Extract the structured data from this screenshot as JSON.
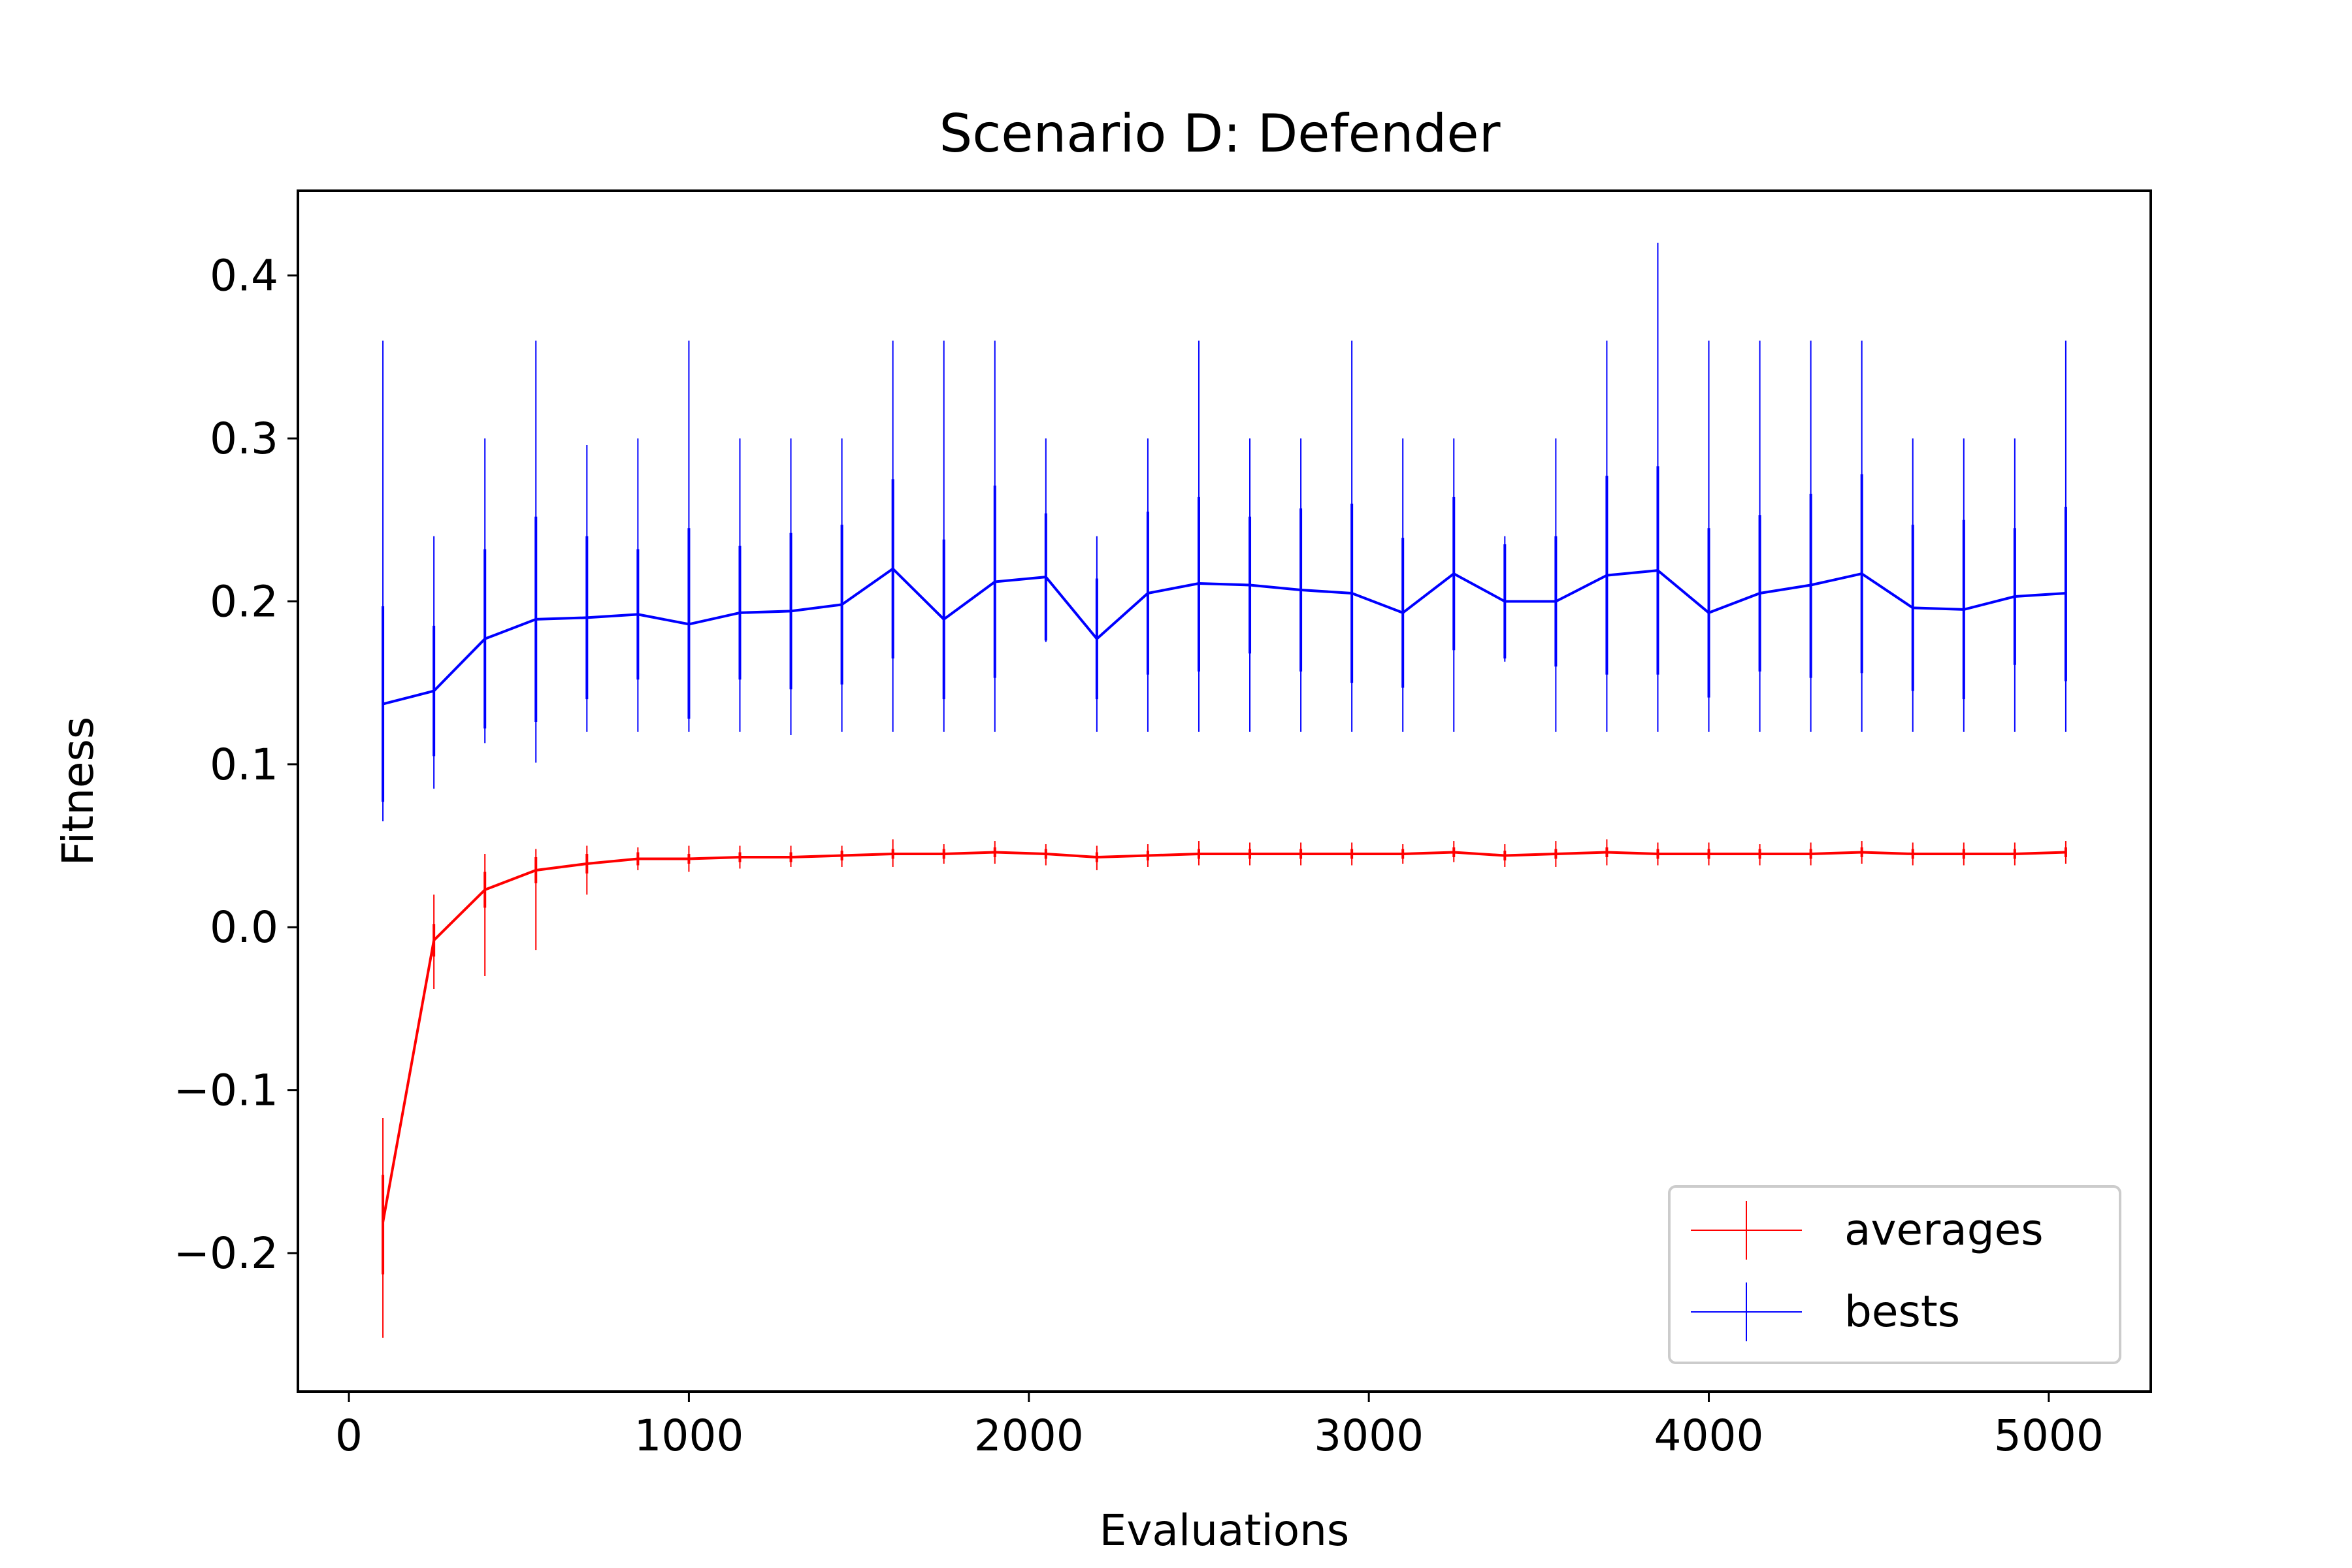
{
  "chart_data": {
    "type": "line",
    "title": "Scenario D: Defender",
    "xlabel": "Evaluations",
    "ylabel": "Fitness",
    "xlim": [
      -150,
      5300
    ],
    "ylim": [
      -0.285,
      0.452
    ],
    "xticks": [
      0,
      1000,
      2000,
      3000,
      4000,
      5000
    ],
    "xtick_labels": [
      "0",
      "1000",
      "2000",
      "3000",
      "4000",
      "5000"
    ],
    "yticks": [
      -0.2,
      -0.1,
      0.0,
      0.1,
      0.2,
      0.3,
      0.4
    ],
    "ytick_labels": [
      "−0.2",
      "−0.1",
      "0.0",
      "0.1",
      "0.2",
      "0.3",
      "0.4"
    ],
    "grid": false,
    "legend_position": "lower-right",
    "error_bars": true,
    "series": [
      {
        "name": "averages",
        "color": "#ff0000",
        "x": [
          100,
          250,
          400,
          550,
          700,
          850,
          1000,
          1150,
          1300,
          1450,
          1600,
          1750,
          1900,
          2050,
          2200,
          2350,
          2500,
          2650,
          2800,
          2950,
          3100,
          3250,
          3400,
          3550,
          3700,
          3850,
          4000,
          4150,
          4300,
          4450,
          4600,
          4750,
          4900,
          5050
        ],
        "y": [
          -0.181,
          -0.008,
          0.023,
          0.035,
          0.039,
          0.042,
          0.042,
          0.043,
          0.043,
          0.044,
          0.045,
          0.045,
          0.046,
          0.045,
          0.043,
          0.044,
          0.045,
          0.045,
          0.045,
          0.045,
          0.045,
          0.046,
          0.044,
          0.045,
          0.046,
          0.045,
          0.045,
          0.045,
          0.045,
          0.046,
          0.045,
          0.045,
          0.045,
          0.046
        ],
        "err_outer_low": [
          -0.252,
          -0.038,
          -0.03,
          -0.014,
          0.02,
          0.035,
          0.034,
          0.036,
          0.037,
          0.037,
          0.037,
          0.039,
          0.039,
          0.038,
          0.035,
          0.037,
          0.038,
          0.038,
          0.038,
          0.038,
          0.039,
          0.04,
          0.037,
          0.037,
          0.038,
          0.038,
          0.038,
          0.038,
          0.038,
          0.039,
          0.038,
          0.038,
          0.038,
          0.039
        ],
        "err_outer_high": [
          -0.117,
          0.02,
          0.045,
          0.048,
          0.05,
          0.049,
          0.05,
          0.05,
          0.05,
          0.05,
          0.054,
          0.051,
          0.053,
          0.051,
          0.05,
          0.051,
          0.053,
          0.052,
          0.052,
          0.052,
          0.051,
          0.053,
          0.051,
          0.053,
          0.054,
          0.052,
          0.052,
          0.051,
          0.052,
          0.053,
          0.052,
          0.052,
          0.052,
          0.053
        ],
        "err_inner_low": [
          -0.213,
          -0.018,
          0.012,
          0.027,
          0.033,
          0.038,
          0.039,
          0.04,
          0.04,
          0.041,
          0.042,
          0.042,
          0.043,
          0.042,
          0.04,
          0.041,
          0.042,
          0.042,
          0.042,
          0.042,
          0.042,
          0.043,
          0.041,
          0.042,
          0.043,
          0.042,
          0.042,
          0.042,
          0.042,
          0.043,
          0.042,
          0.042,
          0.042,
          0.043
        ],
        "err_inner_high": [
          -0.152,
          0.002,
          0.034,
          0.043,
          0.045,
          0.046,
          0.045,
          0.046,
          0.046,
          0.047,
          0.048,
          0.048,
          0.049,
          0.048,
          0.046,
          0.047,
          0.048,
          0.048,
          0.048,
          0.048,
          0.048,
          0.049,
          0.047,
          0.048,
          0.049,
          0.048,
          0.048,
          0.048,
          0.048,
          0.049,
          0.048,
          0.048,
          0.048,
          0.049
        ]
      },
      {
        "name": "bests",
        "color": "#0000ff",
        "x": [
          100,
          250,
          400,
          550,
          700,
          850,
          1000,
          1150,
          1300,
          1450,
          1600,
          1750,
          1900,
          2050,
          2200,
          2350,
          2500,
          2650,
          2800,
          2950,
          3100,
          3250,
          3400,
          3550,
          3700,
          3850,
          4000,
          4150,
          4300,
          4450,
          4600,
          4750,
          4900,
          5050
        ],
        "y": [
          0.137,
          0.145,
          0.177,
          0.189,
          0.19,
          0.192,
          0.186,
          0.193,
          0.194,
          0.198,
          0.22,
          0.189,
          0.212,
          0.215,
          0.177,
          0.205,
          0.211,
          0.21,
          0.207,
          0.205,
          0.193,
          0.217,
          0.2,
          0.2,
          0.216,
          0.219,
          0.193,
          0.205,
          0.21,
          0.217,
          0.196,
          0.195,
          0.203,
          0.205
        ],
        "err_outer_low": [
          0.065,
          0.085,
          0.113,
          0.101,
          0.12,
          0.12,
          0.12,
          0.12,
          0.118,
          0.12,
          0.12,
          0.12,
          0.12,
          0.175,
          0.12,
          0.12,
          0.12,
          0.12,
          0.12,
          0.12,
          0.12,
          0.12,
          0.163,
          0.12,
          0.12,
          0.12,
          0.12,
          0.12,
          0.12,
          0.12,
          0.12,
          0.12,
          0.12,
          0.12
        ],
        "err_outer_high": [
          0.36,
          0.24,
          0.3,
          0.36,
          0.296,
          0.3,
          0.36,
          0.3,
          0.3,
          0.3,
          0.36,
          0.36,
          0.36,
          0.3,
          0.24,
          0.3,
          0.36,
          0.3,
          0.3,
          0.36,
          0.3,
          0.3,
          0.24,
          0.3,
          0.36,
          0.42,
          0.36,
          0.36,
          0.36,
          0.36,
          0.3,
          0.3,
          0.3,
          0.36
        ],
        "err_inner_low": [
          0.077,
          0.105,
          0.122,
          0.126,
          0.14,
          0.152,
          0.128,
          0.152,
          0.146,
          0.149,
          0.165,
          0.14,
          0.153,
          0.176,
          0.14,
          0.155,
          0.157,
          0.168,
          0.157,
          0.15,
          0.147,
          0.17,
          0.165,
          0.16,
          0.155,
          0.155,
          0.141,
          0.157,
          0.153,
          0.156,
          0.145,
          0.14,
          0.161,
          0.151
        ],
        "err_inner_high": [
          0.197,
          0.185,
          0.232,
          0.252,
          0.24,
          0.232,
          0.245,
          0.234,
          0.242,
          0.247,
          0.275,
          0.238,
          0.271,
          0.254,
          0.214,
          0.255,
          0.264,
          0.252,
          0.257,
          0.26,
          0.239,
          0.264,
          0.235,
          0.24,
          0.277,
          0.283,
          0.245,
          0.253,
          0.266,
          0.278,
          0.247,
          0.25,
          0.245,
          0.258
        ]
      }
    ]
  }
}
